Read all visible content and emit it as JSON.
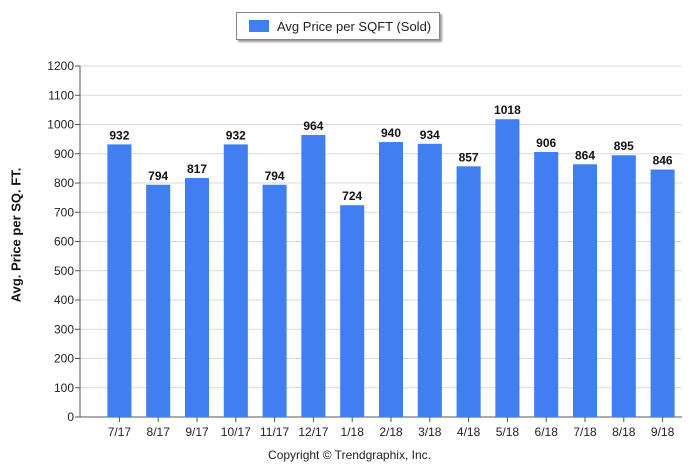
{
  "legend": {
    "label": "Avg Price per SQFT (Sold)"
  },
  "footer": {
    "copyright": "Copyright © Trendgraphix, Inc."
  },
  "colors": {
    "bar": "#3f7ff0",
    "grid": "#d9d9d9",
    "axis": "#555555",
    "text": "#222222"
  },
  "chart_data": {
    "type": "bar",
    "title": "",
    "xlabel": "",
    "ylabel": "Avg. Price per SQ. FT.",
    "ylim": [
      0,
      1200
    ],
    "yticks": [
      0,
      100,
      200,
      300,
      400,
      500,
      600,
      700,
      800,
      900,
      1000,
      1100,
      1200
    ],
    "grid": true,
    "legend_position": "top-center",
    "categories": [
      "7/17",
      "8/17",
      "9/17",
      "10/17",
      "11/17",
      "12/17",
      "1/18",
      "2/18",
      "3/18",
      "4/18",
      "5/18",
      "6/18",
      "7/18",
      "8/18",
      "9/18"
    ],
    "series": [
      {
        "name": "Avg Price per SQFT (Sold)",
        "values": [
          932,
          794,
          817,
          932,
          794,
          964,
          724,
          940,
          934,
          857,
          1018,
          906,
          864,
          895,
          846
        ]
      }
    ]
  }
}
